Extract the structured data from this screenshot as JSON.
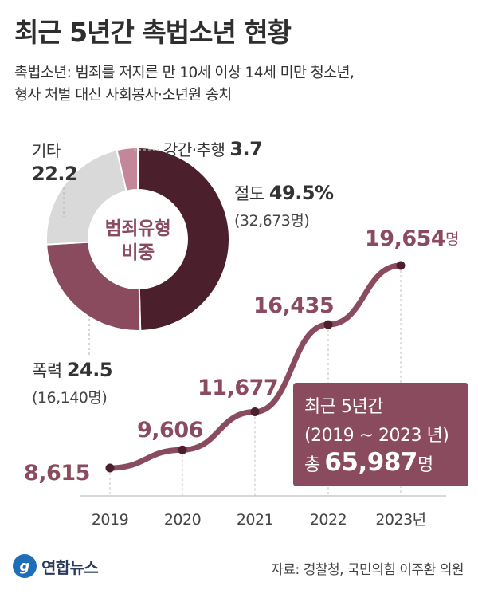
{
  "title": "최근 5년간 촉법소년 현황",
  "subtitle": {
    "line1": "촉법소년: 범죄를 저지른 만 10세 이상 14세 미만 청소년,",
    "line2": "형사 처벌 대신 사회봉사·소년원 송치"
  },
  "colors": {
    "line": "#8a4b5e",
    "dark": "#4b1f2c",
    "mid": "#8a4b5e",
    "pink": "#c4879a",
    "gray": "#d9d9d9",
    "title": "#2e2e2e"
  },
  "chart_data": [
    {
      "type": "pie",
      "title": "범죄유형 비중",
      "unit": "%",
      "slices": [
        {
          "name": "절도",
          "value": 49.5,
          "value_label": "49.5%",
          "count_label": "(32,673명)",
          "color": "#4b1f2c"
        },
        {
          "name": "폭력",
          "value": 24.5,
          "value_label": "24.5",
          "count_label": "(16,140명)",
          "color": "#8a4b5e"
        },
        {
          "name": "기타",
          "value": 22.2,
          "value_label": "22.2",
          "count_label": "",
          "color": "#d9d9d9"
        },
        {
          "name": "강간·추행",
          "value": 3.7,
          "value_label": "3.7",
          "count_label": "",
          "color": "#c4879a"
        }
      ]
    },
    {
      "type": "line",
      "categories": [
        "2019",
        "2020",
        "2021",
        "2022",
        "2023년"
      ],
      "values": [
        8615,
        9606,
        11677,
        16435,
        19654
      ],
      "value_labels": [
        "8,615",
        "9,606",
        "11,677",
        "16,435",
        "19,654"
      ],
      "last_unit": "명",
      "grid": false
    }
  ],
  "total": {
    "line1": "최근 5년간",
    "line2": "(2019 ~ 2023 년)",
    "prefix": "총",
    "value": "65,987",
    "unit": "명"
  },
  "logo": {
    "mark": "g",
    "name": "연합뉴스"
  },
  "source": "자료: 경찰청, 국민의힘 이주환 의원"
}
